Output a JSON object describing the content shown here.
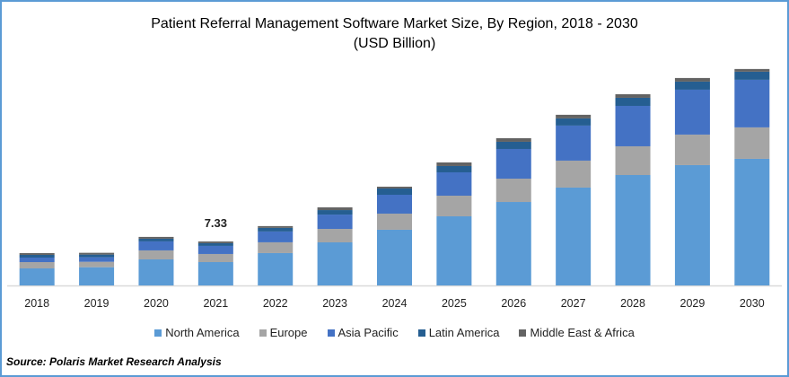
{
  "chart_data": {
    "type": "bar",
    "stacked": true,
    "title": "Patient Referral Management Software Market Size, By Region, 2018 - 2030",
    "subtitle": "(USD Billion)",
    "xlabel": "",
    "ylabel": "",
    "categories": [
      "2018",
      "2019",
      "2020",
      "2021",
      "2022",
      "2023",
      "2024",
      "2025",
      "2026",
      "2027",
      "2028",
      "2029",
      "2030"
    ],
    "series": [
      {
        "name": "North America",
        "color": "#5b9bd5",
        "values": [
          2.84,
          3.04,
          4.34,
          3.89,
          5.39,
          7.18,
          9.28,
          11.52,
          13.91,
          16.31,
          18.4,
          20.05,
          21.1
        ]
      },
      {
        "name": "Europe",
        "color": "#a5a5a5",
        "values": [
          1.05,
          0.9,
          1.5,
          1.35,
          1.8,
          2.24,
          2.69,
          3.44,
          3.89,
          4.49,
          4.79,
          5.09,
          5.24
        ]
      },
      {
        "name": "Asia Pacific",
        "color": "#4472c4",
        "values": [
          0.75,
          0.75,
          1.5,
          1.35,
          1.8,
          2.39,
          3.14,
          3.89,
          4.94,
          5.84,
          6.73,
          7.48,
          7.93
        ]
      },
      {
        "name": "Latin America",
        "color": "#255e91",
        "values": [
          0.45,
          0.45,
          0.45,
          0.45,
          0.6,
          0.75,
          1.05,
          1.05,
          1.2,
          1.2,
          1.35,
          1.35,
          1.35
        ]
      },
      {
        "name": "Middle East & Africa",
        "color": "#636363",
        "values": [
          0.3,
          0.3,
          0.3,
          0.29,
          0.3,
          0.45,
          0.3,
          0.6,
          0.6,
          0.6,
          0.6,
          0.6,
          0.45
        ]
      }
    ],
    "annotations": [
      {
        "category": "2021",
        "text": "7.33"
      }
    ],
    "legend_position": "bottom",
    "grid": false
  },
  "source": "Source: Polaris  Market Research Analysis"
}
